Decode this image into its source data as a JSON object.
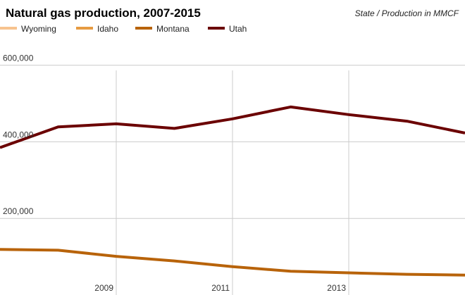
{
  "chart_data": {
    "type": "line",
    "title": "Natural gas production, 2007-2015",
    "subtitle": "State / Production in MMCF",
    "xlabel": "",
    "ylabel": "",
    "x": [
      2007,
      2008,
      2009,
      2010,
      2011,
      2012,
      2013,
      2014,
      2015
    ],
    "xlim": [
      2007,
      2015
    ],
    "ylim": [
      0,
      660000
    ],
    "x_ticks": [
      "2009",
      "2011",
      "2013"
    ],
    "y_ticks": [
      "200,000",
      "400,000",
      "600,000"
    ],
    "grid": true,
    "legend_position": "top-left",
    "series": [
      {
        "name": "Wyoming",
        "color": "#f7c38f",
        "values": [
          null,
          null,
          null,
          null,
          null,
          null,
          null,
          null,
          null
        ]
      },
      {
        "name": "Idaho",
        "color": "#e69b42",
        "values": [
          null,
          null,
          null,
          null,
          null,
          null,
          null,
          null,
          null
        ]
      },
      {
        "name": "Montana",
        "color": "#b8630a",
        "values": [
          119000,
          117000,
          101000,
          89000,
          74000,
          62000,
          58000,
          54000,
          52000
        ]
      },
      {
        "name": "Utah",
        "color": "#6b0000",
        "values": [
          385000,
          439000,
          447000,
          435000,
          460000,
          491000,
          471000,
          454000,
          423000
        ]
      }
    ]
  }
}
